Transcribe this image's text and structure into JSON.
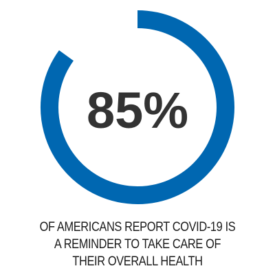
{
  "colors": {
    "ring": "#0067b1",
    "text": "#333333",
    "caption": "#1a1a1a"
  },
  "chart_data": {
    "type": "pie",
    "variant": "donut",
    "values": [
      85,
      15
    ],
    "title": "",
    "center_label": "85%",
    "caption_lines": [
      "OF AMERICANS REPORT COVID-19 IS",
      "A REMINDER TO TAKE CARE OF",
      "THEIR OVERALL HEALTH"
    ]
  }
}
